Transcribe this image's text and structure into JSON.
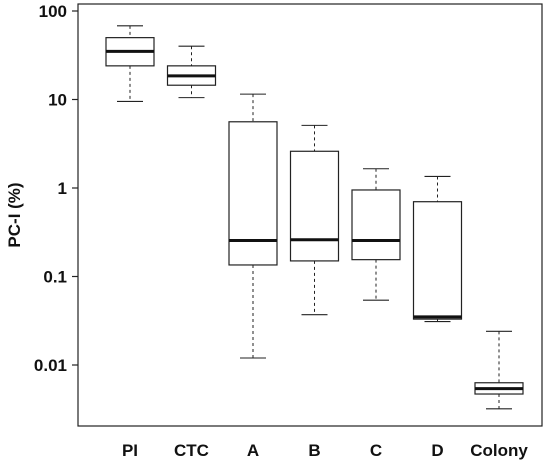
{
  "chart_data": {
    "type": "boxplot",
    "title": "",
    "xlabel": "",
    "ylabel": "PC-I (%)",
    "yscale": "log",
    "ylim": [
      0.003,
      100
    ],
    "yticks": [
      100,
      10,
      1,
      0.1,
      0.01
    ],
    "ytick_labels": [
      "100",
      "10",
      "1",
      "0.1",
      "0.01"
    ],
    "grid": false,
    "categories": [
      "PI",
      "CTC",
      "A",
      "B",
      "C",
      "D",
      "Colony"
    ],
    "boxes": [
      {
        "category": "PI",
        "whisker_low": 9.5,
        "q1": 24,
        "median": 35,
        "q3": 50,
        "whisker_high": 68
      },
      {
        "category": "CTC",
        "whisker_low": 10.5,
        "q1": 14.5,
        "median": 18.5,
        "q3": 24,
        "whisker_high": 40
      },
      {
        "category": "A",
        "whisker_low": 0.012,
        "q1": 0.135,
        "median": 0.255,
        "q3": 5.6,
        "whisker_high": 11.5
      },
      {
        "category": "B",
        "whisker_low": 0.037,
        "q1": 0.15,
        "median": 0.26,
        "q3": 2.6,
        "whisker_high": 5.1
      },
      {
        "category": "C",
        "whisker_low": 0.054,
        "q1": 0.155,
        "median": 0.255,
        "q3": 0.95,
        "whisker_high": 1.65
      },
      {
        "category": "D",
        "whisker_low": 0.031,
        "q1": 0.033,
        "median": 0.035,
        "q3": 0.7,
        "whisker_high": 1.35
      },
      {
        "category": "Colony",
        "whisker_low": 0.0032,
        "q1": 0.0047,
        "median": 0.0054,
        "q3": 0.0063,
        "whisker_high": 0.024
      }
    ]
  }
}
